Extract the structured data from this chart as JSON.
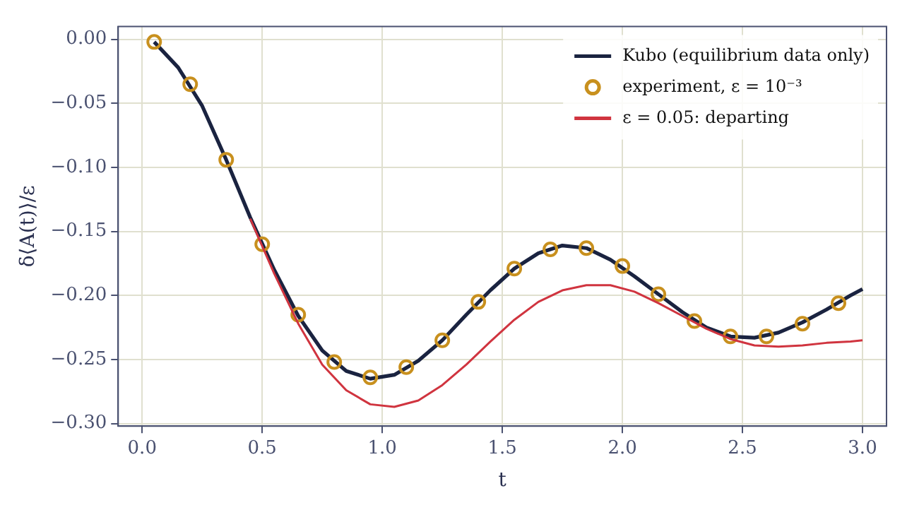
{
  "chart_data": {
    "type": "line",
    "xlabel": "t",
    "ylabel": "δ⟨A(t)⟩/ε",
    "xlim": [
      -0.1,
      3.1
    ],
    "ylim": [
      -0.302,
      0.01
    ],
    "xticks": [
      {
        "value": 0,
        "label": "0.0"
      },
      0.5,
      {
        "value": 1,
        "label": "1.0"
      },
      1.5,
      {
        "value": 2,
        "label": "2.0"
      },
      2.5,
      {
        "value": 3,
        "label": "3.0"
      }
    ],
    "yticks": [
      {
        "value": 0,
        "label": "0.00"
      },
      {
        "value": -0.05,
        "label": "−0.05"
      },
      {
        "value": -0.1,
        "label": "−0.10"
      },
      {
        "value": -0.15,
        "label": "−0.15"
      },
      {
        "value": -0.2,
        "label": "−0.20"
      },
      {
        "value": -0.25,
        "label": "−0.25"
      },
      {
        "value": -0.3,
        "label": "−0.30"
      }
    ],
    "grid": true,
    "legend": "top right",
    "series": [
      {
        "name": "Kubo (equilibrium data only)",
        "marker": "none",
        "color": "#1a2340",
        "x": [
          0.05,
          0.15,
          0.25,
          0.35,
          0.45,
          0.55,
          0.65,
          0.75,
          0.85,
          0.95,
          1.05,
          1.15,
          1.25,
          1.35,
          1.45,
          1.55,
          1.65,
          1.75,
          1.85,
          1.95,
          2.05,
          2.15,
          2.25,
          2.35,
          2.45,
          2.55,
          2.65,
          2.75,
          2.85,
          2.95,
          3.0
        ],
        "values": [
          -0.002,
          -0.022,
          -0.052,
          -0.094,
          -0.139,
          -0.18,
          -0.216,
          -0.243,
          -0.259,
          -0.265,
          -0.262,
          -0.251,
          -0.235,
          -0.215,
          -0.196,
          -0.179,
          -0.167,
          -0.161,
          -0.163,
          -0.172,
          -0.185,
          -0.199,
          -0.213,
          -0.225,
          -0.232,
          -0.233,
          -0.229,
          -0.221,
          -0.211,
          -0.2,
          -0.195
        ]
      },
      {
        "name": "experiment, ε = 10⁻³",
        "type": "scatter",
        "marker": "circle",
        "color": "#c8901e",
        "x": [
          0.05,
          0.2,
          0.35,
          0.5,
          0.65,
          0.8,
          0.95,
          1.1,
          1.25,
          1.4,
          1.55,
          1.7,
          1.85,
          2.0,
          2.15,
          2.3,
          2.45,
          2.6,
          2.75,
          2.9
        ],
        "values": [
          -0.002,
          -0.035,
          -0.094,
          -0.16,
          -0.215,
          -0.252,
          -0.264,
          -0.256,
          -0.235,
          -0.205,
          -0.179,
          -0.164,
          -0.163,
          -0.177,
          -0.199,
          -0.22,
          -0.232,
          -0.232,
          -0.222,
          -0.206
        ]
      },
      {
        "name": "ε = 0.05: departing",
        "marker": "none",
        "color": "#d0343f",
        "x": [
          0.45,
          0.55,
          0.65,
          0.75,
          0.85,
          0.95,
          1.05,
          1.15,
          1.25,
          1.35,
          1.45,
          1.55,
          1.65,
          1.75,
          1.85,
          1.95,
          2.05,
          2.15,
          2.25,
          2.35,
          2.45,
          2.55,
          2.65,
          2.75,
          2.85,
          2.95,
          3.0
        ],
        "values": [
          -0.14,
          -0.183,
          -0.222,
          -0.254,
          -0.274,
          -0.285,
          -0.287,
          -0.282,
          -0.27,
          -0.254,
          -0.236,
          -0.219,
          -0.205,
          -0.196,
          -0.192,
          -0.192,
          -0.197,
          -0.206,
          -0.216,
          -0.226,
          -0.234,
          -0.239,
          -0.24,
          -0.239,
          -0.237,
          -0.236,
          -0.235
        ]
      }
    ]
  }
}
